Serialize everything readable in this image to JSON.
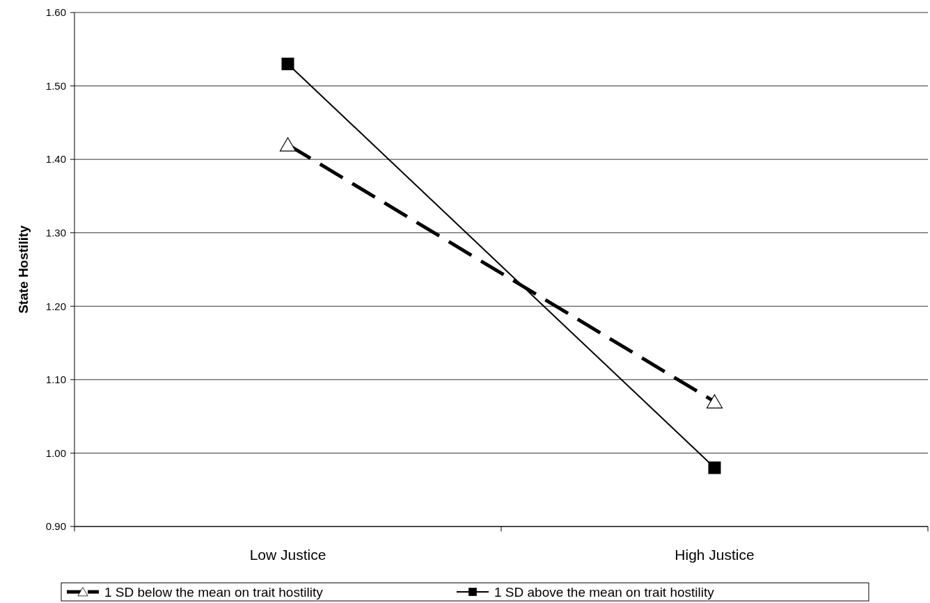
{
  "chart_data": {
    "type": "line",
    "ylabel": "State Hostility",
    "categories": [
      "Low Justice",
      "High Justice"
    ],
    "series": [
      {
        "name": "1 SD below the mean on trait hostility",
        "color": "#000000",
        "values": [
          1.42,
          1.07
        ],
        "marker": "triangle",
        "line_style": "dashed"
      },
      {
        "name": "1 SD above the mean on trait hostility",
        "color": "#000000",
        "values": [
          1.53,
          0.98
        ],
        "marker": "square",
        "line_style": "solid"
      }
    ],
    "ylim": [
      0.9,
      1.6
    ],
    "yticks": [
      {
        "value": 0.9,
        "label": "0.90"
      },
      {
        "value": 1.0,
        "label": "1.00"
      },
      {
        "value": 1.1,
        "label": "1.10"
      },
      {
        "value": 1.2,
        "label": "1.20"
      },
      {
        "value": 1.3,
        "label": "1.30"
      },
      {
        "value": 1.4,
        "label": "1.40"
      },
      {
        "value": 1.5,
        "label": "1.50"
      },
      {
        "value": 1.6,
        "label": "1.60"
      }
    ],
    "grid": "y",
    "legend": "bottom"
  }
}
